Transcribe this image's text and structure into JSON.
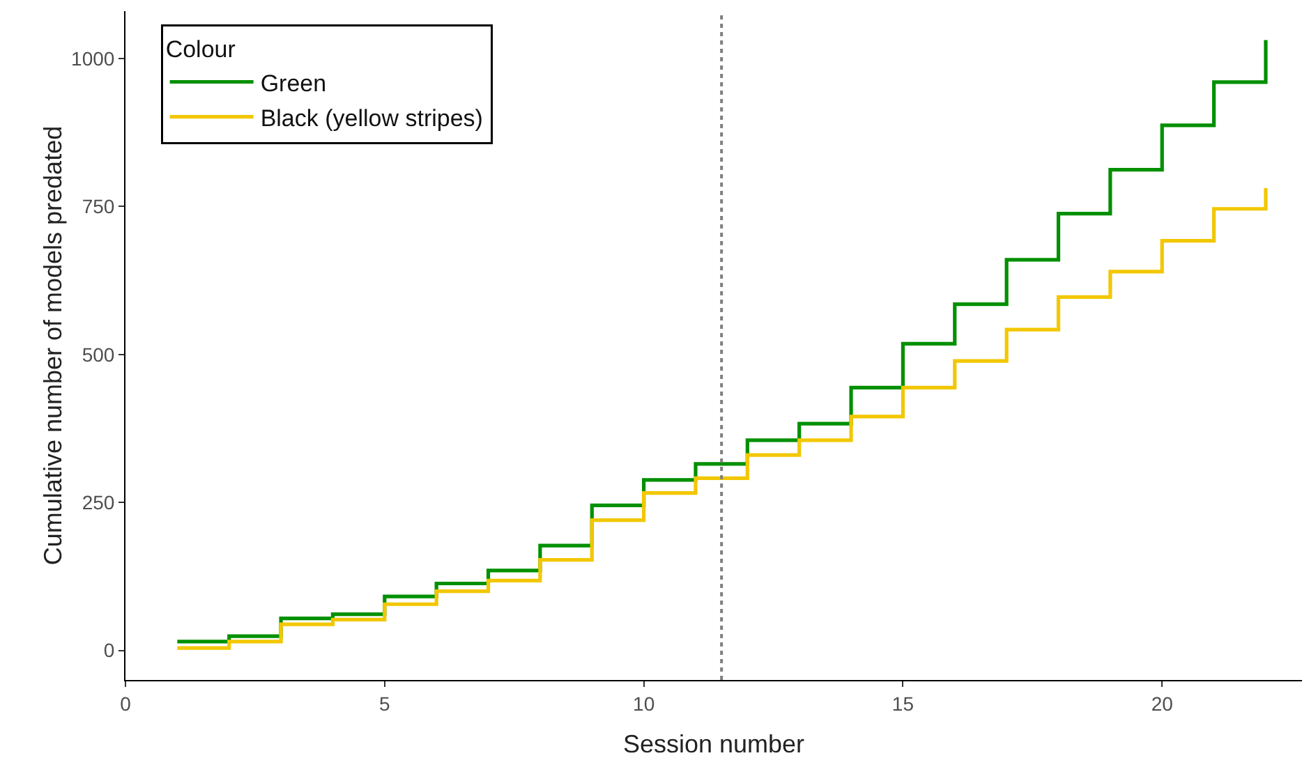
{
  "chart_data": {
    "type": "step",
    "xlabel": "Session number",
    "ylabel": "Cumulative number of models predated",
    "legend_title": "Colour",
    "x": [
      1,
      2,
      3,
      4,
      5,
      6,
      7,
      8,
      9,
      10,
      11,
      12,
      13,
      14,
      15,
      16,
      17,
      18,
      19,
      20,
      21,
      22
    ],
    "series": [
      {
        "name": "Green",
        "color": "#009000",
        "values": [
          15,
          24,
          54,
          61,
          91,
          113,
          135,
          177,
          245,
          288,
          315,
          355,
          383,
          444,
          518,
          585,
          660,
          738,
          812,
          887,
          960,
          1031
        ]
      },
      {
        "name": "Black (yellow stripes)",
        "color": "#f2c700",
        "values": [
          4,
          15,
          44,
          52,
          78,
          100,
          118,
          153,
          220,
          266,
          291,
          330,
          355,
          395,
          444,
          489,
          542,
          597,
          640,
          692,
          746,
          781
        ]
      }
    ],
    "xlim": [
      0,
      22.7
    ],
    "xticks": [
      0,
      5,
      10,
      15,
      20
    ],
    "ylim": [
      -50,
      1080
    ],
    "yticks": [
      0,
      250,
      500,
      750,
      1000
    ],
    "ref_lines": [
      {
        "axis": "x",
        "value": 11.5,
        "color": "#808080",
        "line_style": "dotted"
      }
    ],
    "grid": false,
    "legend": "top left"
  }
}
